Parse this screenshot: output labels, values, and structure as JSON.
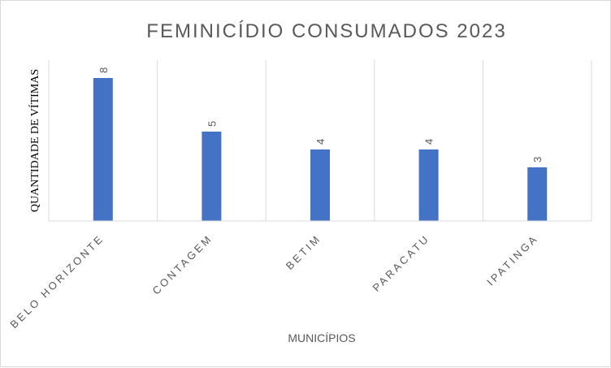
{
  "chart_data": {
    "type": "bar",
    "title": "FEMINICÍDIO CONSUMADOS 2023",
    "xlabel": "MUNICÍPIOS",
    "ylabel": "QUANTIDADE DE VÍTIMAS",
    "categories": [
      "BELO HORIZONTE",
      "CONTAGEM",
      "BETIM",
      "PARACATU",
      "IPATINGA"
    ],
    "values": [
      8,
      5,
      4,
      4,
      3
    ],
    "ylim": [
      0,
      9
    ],
    "grid": "vertical",
    "legend": "none",
    "bar_color": "#4472C4",
    "gridline_color": "#d9d9d9"
  }
}
